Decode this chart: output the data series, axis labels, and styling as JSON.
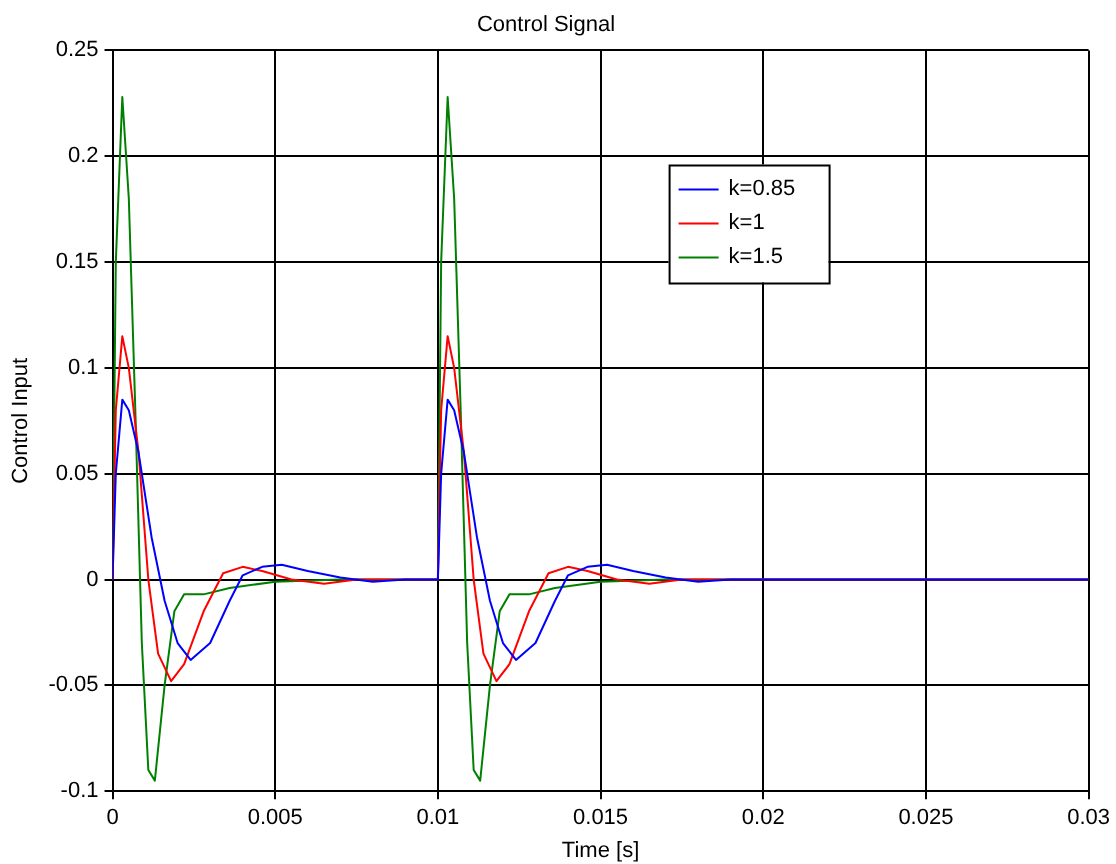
{
  "chart_data": {
    "type": "line",
    "title": "Control Signal",
    "xlabel": "Time [s]",
    "ylabel": "Control Input",
    "xlim": [
      0,
      0.03
    ],
    "xticks": [
      0,
      0.005,
      0.01,
      0.015,
      0.02,
      0.025,
      0.03
    ],
    "ylim": [
      -0.1,
      0.25
    ],
    "yticks": [
      -0.1,
      -0.05,
      0,
      0.05,
      0.1,
      0.15,
      0.2,
      0.25
    ],
    "grid": true,
    "line_style": "solid",
    "marker": "none",
    "legend": "top right",
    "series": [
      {
        "name": "k=0.85",
        "color": "#0000ff",
        "x": [
          0,
          0.0001,
          0.0003,
          0.0005,
          0.0008,
          0.0012,
          0.0016,
          0.002,
          0.0024,
          0.003,
          0.0036,
          0.004,
          0.0046,
          0.0052,
          0.006,
          0.007,
          0.008,
          0.009,
          0.01,
          0.0101,
          0.0103,
          0.0105,
          0.0108,
          0.0112,
          0.0116,
          0.012,
          0.0124,
          0.013,
          0.0136,
          0.014,
          0.0146,
          0.0152,
          0.016,
          0.017,
          0.018,
          0.019,
          0.02,
          0.03
        ],
        "values": [
          0,
          0.05,
          0.085,
          0.08,
          0.06,
          0.02,
          -0.01,
          -0.03,
          -0.038,
          -0.03,
          -0.01,
          0.002,
          0.006,
          0.007,
          0.004,
          0.001,
          -0.001,
          0,
          0,
          0.05,
          0.085,
          0.08,
          0.06,
          0.02,
          -0.01,
          -0.03,
          -0.038,
          -0.03,
          -0.01,
          0.002,
          0.006,
          0.007,
          0.004,
          0.001,
          -0.001,
          0,
          0,
          0
        ]
      },
      {
        "name": "k=1",
        "color": "#ff0000",
        "x": [
          0,
          0.0001,
          0.0003,
          0.0005,
          0.0008,
          0.0011,
          0.0014,
          0.0018,
          0.0022,
          0.0028,
          0.0034,
          0.004,
          0.0046,
          0.0055,
          0.0065,
          0.0075,
          0.01,
          0.0101,
          0.0103,
          0.0105,
          0.0108,
          0.0111,
          0.0114,
          0.0118,
          0.0122,
          0.0128,
          0.0134,
          0.014,
          0.0146,
          0.0155,
          0.0165,
          0.0175,
          0.02,
          0.03
        ],
        "values": [
          0,
          0.08,
          0.115,
          0.1,
          0.06,
          0,
          -0.035,
          -0.048,
          -0.04,
          -0.015,
          0.003,
          0.006,
          0.004,
          0,
          -0.002,
          0,
          0,
          0.08,
          0.115,
          0.1,
          0.06,
          0,
          -0.035,
          -0.048,
          -0.04,
          -0.015,
          0.003,
          0.006,
          0.004,
          0,
          -0.002,
          0,
          0,
          0
        ]
      },
      {
        "name": "k=1.5",
        "color": "#008000",
        "x": [
          0,
          0.0001,
          0.0003,
          0.0005,
          0.0007,
          0.0009,
          0.0011,
          0.0013,
          0.0016,
          0.0019,
          0.0022,
          0.0028,
          0.0036,
          0.005,
          0.007,
          0.01,
          0.0101,
          0.0103,
          0.0105,
          0.0107,
          0.0109,
          0.0111,
          0.0113,
          0.0116,
          0.0119,
          0.0122,
          0.0128,
          0.0136,
          0.015,
          0.017,
          0.03
        ],
        "values": [
          0,
          0.15,
          0.228,
          0.18,
          0.08,
          -0.03,
          -0.09,
          -0.095,
          -0.05,
          -0.015,
          -0.007,
          -0.007,
          -0.004,
          -0.001,
          0,
          0,
          0.15,
          0.228,
          0.18,
          0.08,
          -0.03,
          -0.09,
          -0.095,
          -0.05,
          -0.015,
          -0.007,
          -0.007,
          -0.004,
          -0.001,
          0,
          0
        ]
      }
    ]
  }
}
